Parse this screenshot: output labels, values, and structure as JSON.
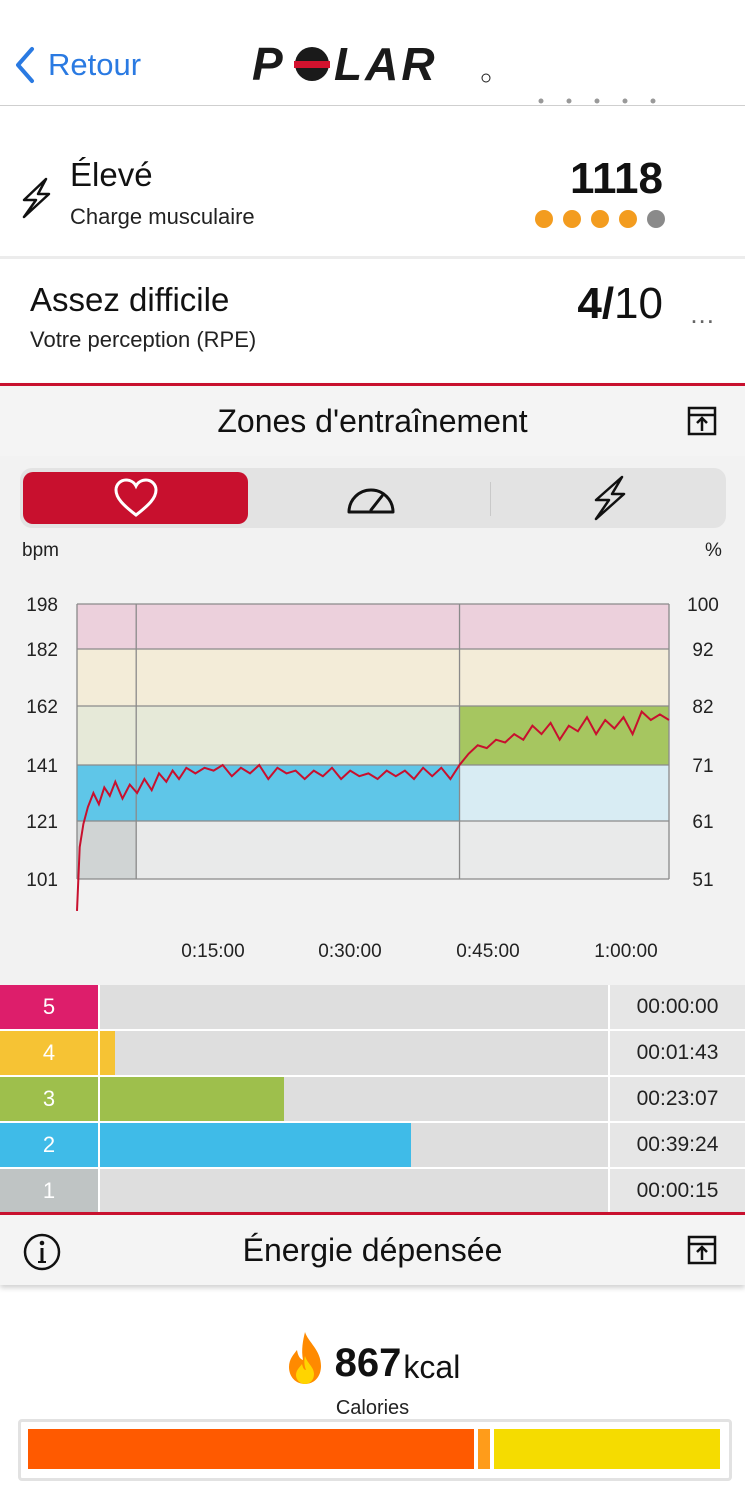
{
  "header": {
    "back_label": "Retour",
    "logo_text": "POLAR"
  },
  "muscle": {
    "title": "Élevé",
    "subtitle": "Charge musculaire",
    "value": "1118",
    "dots_filled": 4,
    "dots_total": 5,
    "dot_color": "#f39c1f",
    "dot_empty_color": "#8a8a8a"
  },
  "rpe": {
    "title": "Assez difficile",
    "subtitle": "Votre perception (RPE)",
    "value_bold": "4/",
    "value_light": "10",
    "more": "..."
  },
  "zones_section": {
    "title": "Zones d'entraînement",
    "tabs": [
      "heart-rate",
      "speed",
      "muscle-load"
    ],
    "active_tab": "heart-rate",
    "left_unit": "bpm",
    "right_unit": "%"
  },
  "chart_data": {
    "type": "line",
    "y_left_ticks": [
      "198",
      "182",
      "162",
      "141",
      "121",
      "101"
    ],
    "y_right_ticks": [
      "100",
      "92",
      "82",
      "71",
      "61",
      "51"
    ],
    "x_ticks": [
      "0:15:00",
      "0:30:00",
      "0:45:00",
      "1:00:00"
    ],
    "xlim_minutes": [
      0,
      65
    ],
    "ylim_bpm": [
      101,
      198
    ],
    "zone_bands_bpm": [
      {
        "zone": 1,
        "from": 101,
        "to": 121,
        "color": "#c5c9c9"
      },
      {
        "zone": 2,
        "from": 121,
        "to": 141,
        "color": "#5fc6e8"
      },
      {
        "zone": 3,
        "from": 141,
        "to": 162,
        "color": "#a6c660"
      },
      {
        "zone": 4,
        "from": 162,
        "to": 182,
        "color": "#f4dca0"
      },
      {
        "zone": 5,
        "from": 182,
        "to": 198,
        "color": "#e6a7c2"
      }
    ],
    "series": [
      {
        "color": "#c8102e",
        "points": [
          [
            0,
            90
          ],
          [
            0.3,
            112
          ],
          [
            0.7,
            120
          ],
          [
            1.2,
            126
          ],
          [
            1.8,
            131
          ],
          [
            2.4,
            127
          ],
          [
            3,
            133
          ],
          [
            3.6,
            130
          ],
          [
            4.2,
            135
          ],
          [
            5,
            129
          ],
          [
            5.8,
            134
          ],
          [
            6.6,
            131
          ],
          [
            7.4,
            136
          ],
          [
            8.2,
            132
          ],
          [
            9,
            138
          ],
          [
            9.8,
            135
          ],
          [
            10.5,
            139
          ],
          [
            11.2,
            136
          ],
          [
            12,
            140
          ],
          [
            13,
            138
          ],
          [
            14,
            140
          ],
          [
            15,
            139
          ],
          [
            16,
            141
          ],
          [
            17,
            137
          ],
          [
            18,
            140
          ],
          [
            19,
            138
          ],
          [
            20,
            141
          ],
          [
            21,
            136
          ],
          [
            22,
            140
          ],
          [
            23,
            138
          ],
          [
            24,
            139
          ],
          [
            25,
            136
          ],
          [
            26,
            139
          ],
          [
            27,
            137
          ],
          [
            28,
            140
          ],
          [
            29,
            136
          ],
          [
            30,
            139
          ],
          [
            31,
            137
          ],
          [
            32,
            138
          ],
          [
            33,
            136
          ],
          [
            34,
            139
          ],
          [
            35,
            137
          ],
          [
            36,
            139
          ],
          [
            37,
            136
          ],
          [
            38,
            140
          ],
          [
            39,
            137
          ],
          [
            40,
            140
          ],
          [
            41,
            136
          ],
          [
            42,
            141
          ],
          [
            43,
            145
          ],
          [
            44,
            148
          ],
          [
            45,
            147
          ],
          [
            46,
            150
          ],
          [
            47,
            149
          ],
          [
            48,
            152
          ],
          [
            49,
            150
          ],
          [
            50,
            155
          ],
          [
            51,
            152
          ],
          [
            52,
            156
          ],
          [
            53,
            150
          ],
          [
            54,
            155
          ],
          [
            55,
            153
          ],
          [
            56,
            158
          ],
          [
            57,
            152
          ],
          [
            58,
            157
          ],
          [
            59,
            154
          ],
          [
            60,
            158
          ],
          [
            61,
            152
          ],
          [
            62,
            160
          ],
          [
            63,
            157
          ],
          [
            64,
            159
          ],
          [
            65,
            157
          ]
        ]
      }
    ]
  },
  "zone_rows": [
    {
      "num": "5",
      "time": "00:00:00",
      "color": "#dd1e6b",
      "fraction": 0.0
    },
    {
      "num": "4",
      "time": "00:01:43",
      "color": "#f6c334",
      "fraction": 0.03
    },
    {
      "num": "3",
      "time": "00:23:07",
      "color": "#9ebf4c",
      "fraction": 0.36
    },
    {
      "num": "2",
      "time": "00:39:24",
      "color": "#3fbbe8",
      "fraction": 0.61
    },
    {
      "num": "1",
      "time": "00:00:15",
      "color": "#bfc4c4",
      "fraction": 0.0
    }
  ],
  "energy": {
    "title": "Énergie dépensée",
    "value": "867",
    "unit": "kcal",
    "label": "Calories",
    "bar_segments": [
      {
        "color": "#ff5a00",
        "fraction": 0.645
      },
      {
        "color": "#ff9c1a",
        "fraction": 0.022
      },
      {
        "color": "#f5dc00",
        "fraction": 0.333
      }
    ]
  }
}
